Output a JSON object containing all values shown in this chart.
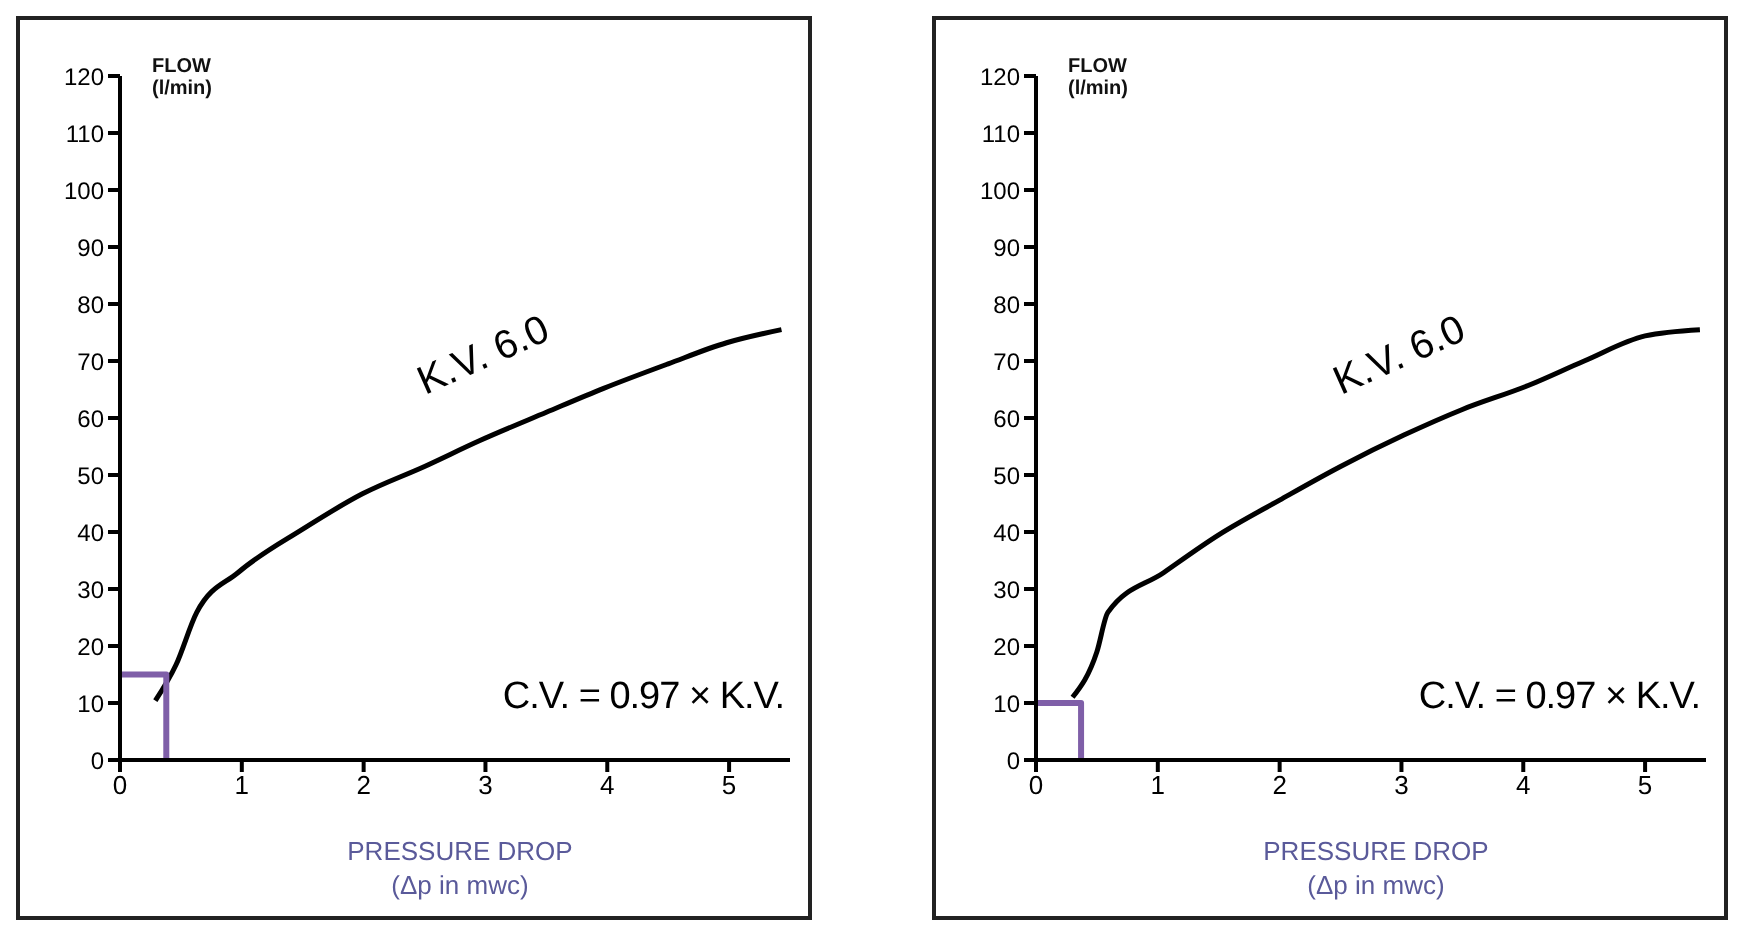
{
  "chart_data": [
    {
      "type": "line",
      "ylabel": "FLOW\n(l/min)",
      "xlabel": "PRESSURE DROP\n(Δp in mwc)",
      "xlim": [
        0,
        5.5
      ],
      "ylim": [
        0,
        120
      ],
      "xticks": [
        0,
        1,
        2,
        3,
        4,
        5
      ],
      "yticks": [
        0,
        10,
        20,
        30,
        40,
        50,
        60,
        70,
        80,
        90,
        100,
        110,
        120
      ],
      "grid": false,
      "marker": "none",
      "line_style": "solid",
      "series": [
        {
          "color": "#000000",
          "x": [
            0.29,
            0.46,
            0.63,
            0.97,
            1.5,
            1.99,
            2.5,
            2.95,
            3.5,
            3.97,
            4.5,
            4.98,
            5.43
          ],
          "values": [
            10.4,
            16.7,
            25.9,
            32.9,
            40.5,
            46.7,
            51.5,
            56,
            61,
            65.2,
            69.5,
            73.2,
            75.5
          ]
        },
        {
          "color": "#7f5fa8",
          "x": [
            0,
            0.38,
            0.38
          ],
          "values": [
            15,
            15,
            0
          ]
        }
      ],
      "annotations": [
        "K.V. 6.0",
        "C.V. = 0.97 × K.V."
      ]
    },
    {
      "type": "line",
      "ylabel": "FLOW\n(l/min)",
      "xlabel": "PRESSURE DROP\n(Δp in mwc)",
      "xlim": [
        0,
        5.5
      ],
      "ylim": [
        0,
        120
      ],
      "xticks": [
        0,
        1,
        2,
        3,
        4,
        5
      ],
      "yticks": [
        0,
        10,
        20,
        30,
        40,
        50,
        60,
        70,
        80,
        90,
        100,
        110,
        120
      ],
      "grid": false,
      "marker": "none",
      "line_style": "solid",
      "series": [
        {
          "color": "#000000",
          "x": [
            0.3,
            0.5,
            0.59,
            1.05,
            1.5,
            2.0,
            2.5,
            3.02,
            3.5,
            4.04,
            4.5,
            5.0,
            5.45
          ],
          "values": [
            11,
            19,
            25.9,
            32.9,
            39.5,
            45.6,
            51.5,
            57,
            61.5,
            65.7,
            70,
            74.4,
            75.5
          ]
        },
        {
          "color": "#7f5fa8",
          "x": [
            0,
            0.37,
            0.37
          ],
          "values": [
            10,
            10,
            0
          ]
        }
      ],
      "annotations": [
        "K.V. 6.0",
        "C.V. = 0.97 × K.V."
      ]
    }
  ]
}
